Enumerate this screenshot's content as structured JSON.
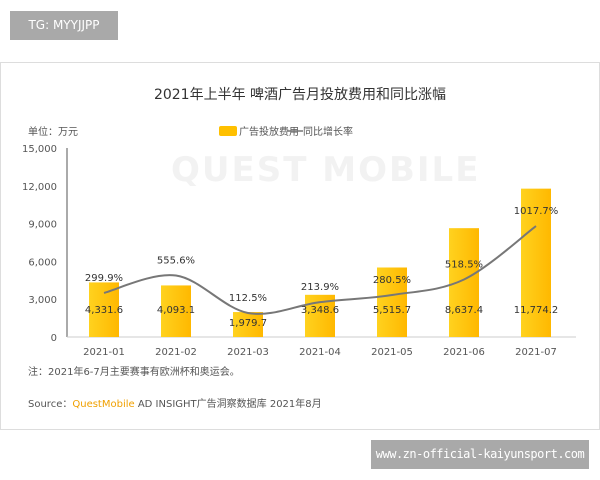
{
  "watermark_tag": "TG: MYYJJPP",
  "site_tag": "www.zn-official-kaiyunsport.com",
  "chart_data": {
    "type": "bar+line",
    "title": "2021年上半年 啤酒广告月投放费用和同比涨幅",
    "unit_label": "单位：万元",
    "categories": [
      "2021-01",
      "2021-02",
      "2021-03",
      "2021-04",
      "2021-05",
      "2021-06",
      "2021-07"
    ],
    "yticks": [
      "0",
      "3,000",
      "6,000",
      "9,000",
      "12,000",
      "15,000"
    ],
    "ylim": [
      0,
      15000
    ],
    "series": [
      {
        "name": "广告投放费用",
        "type": "bar",
        "color": "#FFC000",
        "values": [
          4331.6,
          4093.1,
          1979.7,
          3348.6,
          5515.7,
          8637.4,
          11774.2
        ],
        "labels": [
          "4,331.6",
          "4,093.1",
          "1,979.7",
          "3,348.6",
          "5,515.7",
          "8,637.4",
          "11,774.2"
        ]
      },
      {
        "name": "同比增长率",
        "type": "line",
        "color": "#777777",
        "values": [
          299.9,
          555.6,
          112.5,
          213.9,
          280.5,
          518.5,
          1017.7
        ],
        "labels": [
          "299.9%",
          "555.6%",
          "112.5%",
          "213.9%",
          "280.5%",
          "518.5%",
          "1017.7%"
        ]
      }
    ],
    "legend_position": "top",
    "grid": false
  },
  "note": "注：2021年6-7月主要赛事有欧洲杯和奥运会。",
  "source_prefix": "Source：",
  "source_brand": "QuestMobile",
  "source_rest": " AD INSIGHT广告洞察数据库 2021年8月",
  "chart_watermark": "QUEST MOBILE"
}
